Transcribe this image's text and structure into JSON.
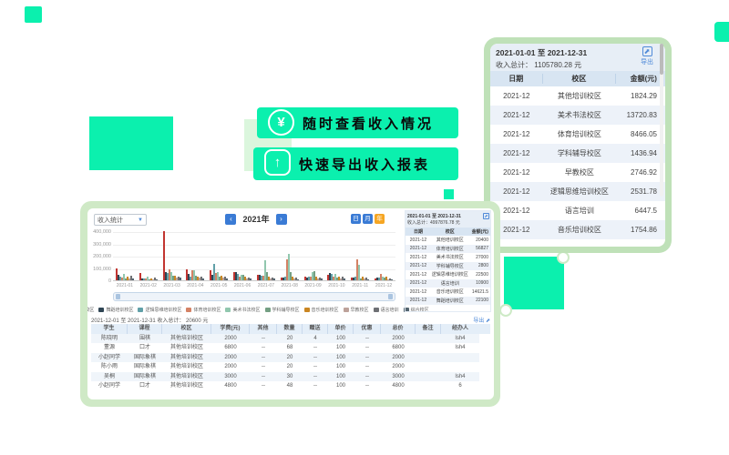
{
  "colors": {
    "accent": "#0bf0ae",
    "frame_green": "#bfe1b8",
    "dash_green": "#cfe9c6",
    "blue_btn": "#3a7bd5",
    "orange_btn": "#f6a623",
    "link_blue": "#4f8ad8"
  },
  "promo": {
    "line1": {
      "icon": "yen-icon",
      "icon_glyph": "¥",
      "text": "随时查看收入情况"
    },
    "line2": {
      "icon": "export-icon",
      "icon_glyph": "↑",
      "text": "快速导出收入报表"
    }
  },
  "income_panel": {
    "date_range": "2021-01-01 至 2021-12-31",
    "total_line": "收入总计： 1105780.28 元",
    "export_label": "导出",
    "export_glyph": "⬈",
    "headers": [
      "日期",
      "校区",
      "金额(元)"
    ],
    "rows": [
      {
        "date": "2021-12",
        "campus": "其他培训校区",
        "amount": "1824.29"
      },
      {
        "date": "2021-12",
        "campus": "美术书法校区",
        "amount": "13720.83"
      },
      {
        "date": "2021-12",
        "campus": "体育培训校区",
        "amount": "8466.05"
      },
      {
        "date": "2021-12",
        "campus": "学科辅导校区",
        "amount": "1436.94"
      },
      {
        "date": "2021-12",
        "campus": "早教校区",
        "amount": "2746.92"
      },
      {
        "date": "2021-12",
        "campus": "逻辑思维培训校区",
        "amount": "2531.78"
      },
      {
        "date": "2021-12",
        "campus": "语言培训",
        "amount": "6447.5"
      },
      {
        "date": "2021-12",
        "campus": "音乐培训校区",
        "amount": "1754.86"
      }
    ]
  },
  "dashboard": {
    "filter_select": {
      "value": "收入统计",
      "caret": "▼"
    },
    "year_nav": {
      "prev": "‹",
      "year": "2021年",
      "next": "›"
    },
    "view_toggles": [
      {
        "label": "日",
        "color": "#3a7bd5",
        "active": false
      },
      {
        "label": "月",
        "color": "#3a7bd5",
        "active": false
      },
      {
        "label": "年",
        "color": "#f6a623",
        "active": true
      }
    ],
    "chart_data": {
      "type": "bar",
      "title": "",
      "xlabel": "",
      "ylabel": "",
      "ylim": [
        0,
        400000
      ],
      "yticks": [
        "400,000",
        "300,000",
        "200,000",
        "100,000",
        "0"
      ],
      "grid": true,
      "legend_position": "bottom",
      "categories": [
        "2021-01",
        "2021-02",
        "2021-03",
        "2021-04",
        "2021-05",
        "2021-06",
        "2021-07",
        "2021-08",
        "2021-09",
        "2021-10",
        "2021-11",
        "2021-12"
      ],
      "series": [
        {
          "name": "其他培训校区",
          "color": "#c23531",
          "values": [
            95000,
            60000,
            400000,
            90000,
            80000,
            70000,
            45000,
            25000,
            30000,
            45000,
            20000,
            15000
          ]
        },
        {
          "name": "舞蹈培训校区",
          "color": "#2f4554",
          "values": [
            45000,
            15000,
            70000,
            55000,
            45000,
            65000,
            45000,
            25000,
            22000,
            60000,
            25000,
            22000
          ]
        },
        {
          "name": "逻辑思维培训校区",
          "color": "#61a0a8",
          "values": [
            30000,
            12000,
            60000,
            30000,
            130000,
            55000,
            40000,
            30000,
            28000,
            50000,
            30000,
            25000
          ]
        },
        {
          "name": "体育培训校区",
          "color": "#d48265",
          "values": [
            20000,
            18000,
            90000,
            85000,
            60000,
            30000,
            35000,
            170000,
            30000,
            28000,
            170000,
            55000
          ]
        },
        {
          "name": "美术书法校区",
          "color": "#91c7ae",
          "values": [
            55000,
            30000,
            65000,
            80000,
            70000,
            48000,
            165000,
            215000,
            70000,
            55000,
            125000,
            30000
          ]
        },
        {
          "name": "学科辅导校区",
          "color": "#749f83",
          "values": [
            18000,
            10000,
            40000,
            35000,
            28000,
            45000,
            65000,
            65000,
            75000,
            22000,
            18000,
            20000
          ]
        },
        {
          "name": "音乐培训校区",
          "color": "#ca8622",
          "values": [
            30000,
            15000,
            35000,
            30000,
            35000,
            30000,
            28000,
            30000,
            26000,
            30000,
            28000,
            30000
          ]
        },
        {
          "name": "早教校区",
          "color": "#bda29a",
          "values": [
            15000,
            8000,
            25000,
            20000,
            22000,
            18000,
            15000,
            12000,
            14000,
            16000,
            12000,
            10000
          ]
        },
        {
          "name": "语言培训",
          "color": "#6e7074",
          "values": [
            35000,
            25000,
            30000,
            28000,
            30000,
            25000,
            22000,
            20000,
            24000,
            26000,
            22000,
            18000
          ]
        },
        {
          "name": "综合校区",
          "color": "#546570",
          "values": [
            12000,
            9000,
            20000,
            15000,
            18000,
            14000,
            12000,
            10000,
            12000,
            14000,
            11000,
            9000
          ]
        }
      ]
    },
    "mini_table": {
      "date_range": "2021-01-01 至 2021-12-31",
      "total_line": "收入总计：4997876.78 元",
      "export_glyph": "⬈",
      "headers": [
        "日期",
        "校区",
        "金额(元)"
      ],
      "rows": [
        {
          "date": "2021-12",
          "campus": "其他培训校区",
          "amount": "20400"
        },
        {
          "date": "2021-12",
          "campus": "体育培训校区",
          "amount": "56827"
        },
        {
          "date": "2021-12",
          "campus": "美术书法校区",
          "amount": "27000"
        },
        {
          "date": "2021-12",
          "campus": "学科辅导校区",
          "amount": "2800"
        },
        {
          "date": "2021-12",
          "campus": "逻辑思维培训校区",
          "amount": "22500"
        },
        {
          "date": "2021-12",
          "campus": "语言培训",
          "amount": "10900"
        },
        {
          "date": "2021-12",
          "campus": "音乐培训校区",
          "amount": "14621.5"
        },
        {
          "date": "2021-12",
          "campus": "舞蹈培训校区",
          "amount": "22100"
        }
      ]
    },
    "detail_table": {
      "title": "2021-12-01 至 2021-12-31 收入总计： 20600 元",
      "export_label": "导出 ⬈",
      "headers": [
        "学生",
        "课程",
        "校区",
        "学费(元)",
        "其他",
        "数量",
        "赠送",
        "单价",
        "优惠",
        "总价",
        "备注",
        "经办人"
      ],
      "rows": [
        [
          "陈晓明",
          "围棋",
          "其他培训校区",
          "2000",
          "--",
          "20",
          "4",
          "100",
          "--",
          "2000",
          "",
          "lsh4"
        ],
        [
          "董源",
          "口才",
          "其他培训校区",
          "6800",
          "--",
          "68",
          "--",
          "100",
          "--",
          "6800",
          "",
          "lsh4"
        ],
        [
          "小赵同学",
          "国际象棋",
          "其他培训校区",
          "2000",
          "--",
          "20",
          "--",
          "100",
          "--",
          "2000",
          "",
          ""
        ],
        [
          "陈小雨",
          "国际象棋",
          "其他培训校区",
          "2000",
          "--",
          "20",
          "--",
          "100",
          "--",
          "2000",
          "",
          ""
        ],
        [
          "吴桐",
          "国际象棋",
          "其他培训校区",
          "3000",
          "--",
          "30",
          "--",
          "100",
          "--",
          "3000",
          "",
          "lsh4"
        ],
        [
          "小赵同学",
          "口才",
          "其他培训校区",
          "4800",
          "--",
          "48",
          "--",
          "100",
          "--",
          "4800",
          "",
          "6"
        ]
      ]
    }
  }
}
